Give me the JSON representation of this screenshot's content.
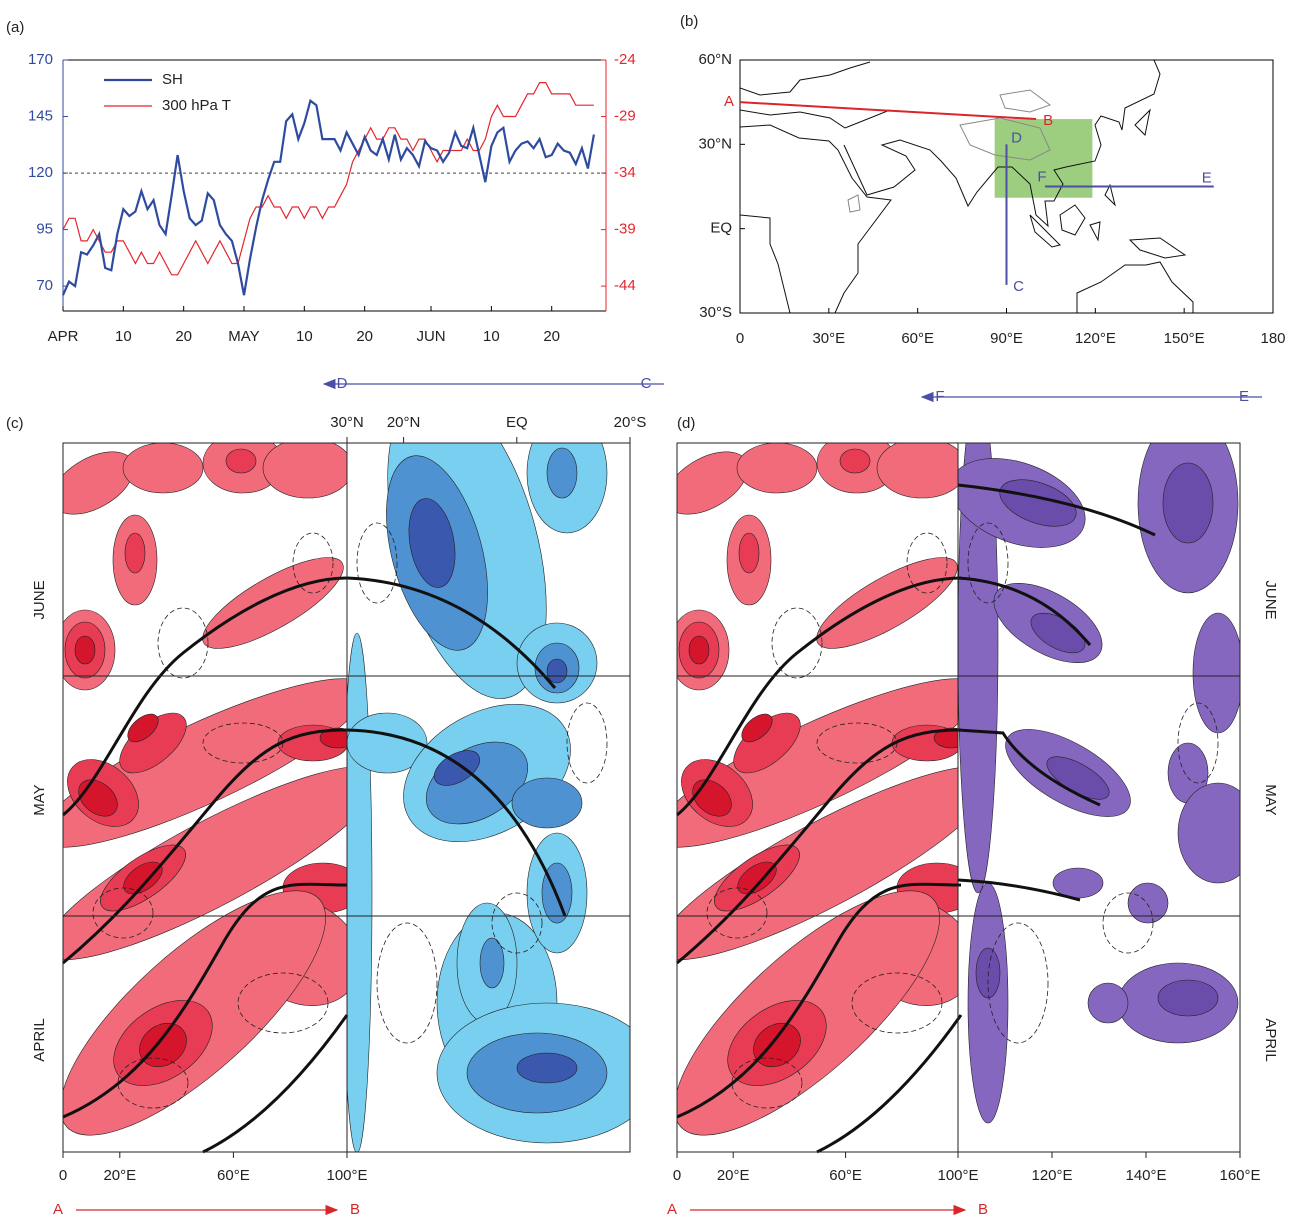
{
  "chart_data": [
    {
      "type": "line",
      "label": "(a)",
      "x": [
        0,
        1,
        2,
        3,
        4,
        5,
        6,
        7,
        8,
        9,
        10,
        11,
        12,
        13,
        14,
        15,
        16,
        17,
        18,
        19,
        20,
        21,
        22,
        23,
        24,
        25,
        26,
        27,
        28,
        29,
        30,
        31,
        32,
        33,
        34,
        35,
        36,
        37,
        38,
        39,
        40,
        41,
        42,
        43,
        44,
        45,
        46,
        47,
        48,
        49,
        50,
        51,
        52,
        53,
        54,
        55,
        56,
        57,
        58,
        59,
        60,
        61,
        62,
        63,
        64,
        65,
        66,
        67,
        68,
        69,
        70,
        71,
        72,
        73,
        74,
        75,
        76,
        77,
        78,
        79,
        80,
        81,
        82,
        83,
        84,
        85,
        86,
        87,
        88
      ],
      "xlim": [
        0,
        90
      ],
      "xticks": [
        {
          "value": 0,
          "label": "APR"
        },
        10,
        20,
        {
          "value": 30,
          "label": "MAY"
        },
        {
          "value": 40,
          "label": "10"
        },
        {
          "value": 50,
          "label": "20"
        },
        {
          "value": 61,
          "label": "JUN"
        },
        {
          "value": 71,
          "label": "10"
        },
        {
          "value": 81,
          "label": "20"
        }
      ],
      "ylim": [
        59,
        170
      ],
      "yticks": [
        70,
        95,
        120,
        145,
        170
      ],
      "y2lim": [
        -46.2,
        -24
      ],
      "y2ticks": [
        -44,
        -39,
        -34,
        -29,
        -24
      ],
      "hline": 120,
      "series": [
        {
          "name": "SH",
          "color": "#2f4b9f",
          "axis": "y",
          "values": [
            66,
            72,
            70,
            85,
            84,
            88,
            93,
            78,
            77,
            93,
            104,
            101,
            103,
            112,
            104,
            108,
            97,
            93,
            110,
            128,
            112,
            100,
            97,
            99,
            111,
            108,
            97,
            93,
            90,
            80,
            66,
            82,
            96,
            108,
            117,
            125,
            125,
            143,
            146,
            135,
            142,
            152,
            150,
            135,
            135,
            135,
            130,
            138,
            133,
            128,
            136,
            130,
            128,
            135,
            126,
            137,
            126,
            131,
            128,
            123,
            134,
            131,
            130,
            125,
            129,
            138,
            132,
            131,
            140,
            128,
            116,
            132,
            138,
            140,
            125,
            130,
            133,
            134,
            131,
            135,
            127,
            128,
            133,
            130,
            129,
            124,
            131,
            122,
            137
          ]
        },
        {
          "name": "300 hPa T",
          "color": "#e5262d",
          "axis": "y2",
          "values": [
            -39,
            -38,
            -38,
            -40,
            -40,
            -39,
            -40,
            -41,
            -41,
            -40,
            -40,
            -41,
            -42,
            -41,
            -42,
            -42,
            -41,
            -42,
            -43,
            -43,
            -42,
            -41,
            -40,
            -41,
            -42,
            -41,
            -40,
            -41,
            -42,
            -42,
            -40,
            -38,
            -37,
            -37,
            -36,
            -37,
            -37,
            -38,
            -37,
            -37,
            -38,
            -37,
            -37,
            -38,
            -37,
            -37,
            -36,
            -35,
            -33,
            -32,
            -31,
            -30,
            -31,
            -31,
            -30,
            -30,
            -31,
            -31,
            -32,
            -31,
            -31,
            -32,
            -33,
            -32,
            -32,
            -32,
            -32,
            -31,
            -32,
            -32,
            -31,
            -29,
            -28,
            -29,
            -29,
            -29,
            -28,
            -27,
            -27,
            -26,
            -26,
            -27,
            -27,
            -27,
            -27,
            -28,
            -28,
            -28,
            -28
          ]
        }
      ]
    },
    {
      "type": "map",
      "label": "(b)",
      "xlim": [
        0,
        180
      ],
      "ylim": [
        -30,
        60
      ],
      "xticks": [
        0,
        {
          "value": 30,
          "label": "30°E"
        },
        {
          "value": 60,
          "label": "60°E"
        },
        {
          "value": 90,
          "label": "90°E"
        },
        {
          "value": 120,
          "label": "120°E"
        },
        {
          "value": 150,
          "label": "150°E"
        },
        180
      ],
      "yticks": [
        {
          "value": 60,
          "label": "60°N"
        },
        {
          "value": 30,
          "label": "30°N"
        },
        {
          "value": 0,
          "label": "EQ"
        },
        {
          "value": -30,
          "label": "30°S"
        }
      ],
      "box": {
        "lon": [
          86,
          119
        ],
        "lat": [
          11,
          39
        ],
        "color": "#8cc56a"
      },
      "sections": [
        {
          "from": "A",
          "to": "B",
          "lon": [
            0,
            100
          ],
          "lat": [
            45,
            39
          ],
          "color": "#d9262b"
        },
        {
          "from": "C",
          "to": "D",
          "lon": [
            90,
            90
          ],
          "lat": [
            -20,
            30
          ],
          "color": "#4b4fa6"
        },
        {
          "from": "E",
          "to": "F",
          "lon": [
            160,
            103
          ],
          "lat": [
            15,
            15
          ],
          "color": "#4b4fa6"
        }
      ]
    },
    {
      "type": "hovmoller",
      "label": "(c)",
      "lon_range": [
        0,
        100
      ],
      "lat_range": [
        30,
        -20
      ],
      "bottom_ticks": [
        0,
        {
          "value": 20,
          "label": "20°E"
        },
        {
          "value": 60,
          "label": "60°E"
        },
        {
          "value": 100,
          "label": "100°E"
        }
      ],
      "top_ticks": [
        {
          "value": 30,
          "label": "30°N"
        },
        {
          "value": 20,
          "label": "20°N"
        },
        {
          "value": 0,
          "label": "EQ"
        },
        {
          "value": -20,
          "label": "20°S"
        }
      ],
      "months": [
        "JUNE",
        "MAY",
        "APRIL"
      ],
      "bottom_arrow": {
        "from": "A",
        "to": "B"
      },
      "top_arrow": {
        "from": "C",
        "to": "D"
      }
    },
    {
      "type": "hovmoller",
      "label": "(d)",
      "lon_range": [
        0,
        100
      ],
      "lon2_range": [
        100,
        160
      ],
      "bottom_ticks": [
        0,
        {
          "value": 20,
          "label": "20°E"
        },
        {
          "value": 60,
          "label": "60°E"
        },
        {
          "value": 100,
          "label": "100°E"
        },
        {
          "value": 120,
          "label": "120°E"
        },
        {
          "value": 140,
          "label": "140°E"
        },
        {
          "value": 160,
          "label": "160°E"
        }
      ],
      "months": [
        "JUNE",
        "MAY",
        "APRIL"
      ],
      "bottom_arrow": {
        "from": "A",
        "to": "B"
      },
      "top_arrow": {
        "from": "E",
        "to": "F"
      }
    }
  ]
}
